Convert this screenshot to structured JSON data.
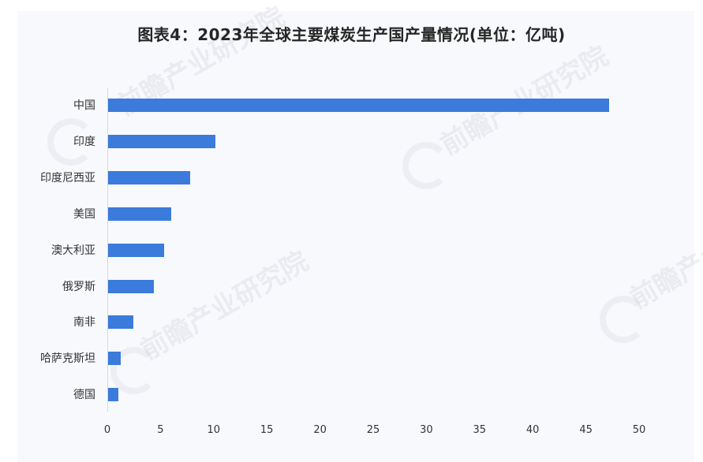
{
  "title": "图表4：2023年全球主要煤炭生产国产量情况(单位：亿吨)",
  "watermark": "前瞻产业研究院",
  "colors": {
    "bar": "#3a7bdb",
    "panel": "#f8f9fd",
    "axis": "#d6d9e0"
  },
  "chart_data": {
    "type": "bar",
    "orientation": "horizontal",
    "title": "图表4：2023年全球主要煤炭生产国产量情况(单位：亿吨)",
    "xlabel": "",
    "ylabel": "",
    "unit": "亿吨",
    "categories": [
      "中国",
      "印度",
      "印度尼西亚",
      "美国",
      "澳大利亚",
      "俄罗斯",
      "南非",
      "哈萨克斯坦",
      "德国"
    ],
    "values": [
      47.1,
      10.1,
      7.7,
      5.9,
      5.3,
      4.3,
      2.4,
      1.2,
      1.0
    ],
    "xlim": [
      0,
      50
    ],
    "xticks": [
      "0",
      "5",
      "10",
      "15",
      "20",
      "25",
      "30",
      "35",
      "40",
      "45",
      "50"
    ],
    "grid": false,
    "legend": null
  }
}
